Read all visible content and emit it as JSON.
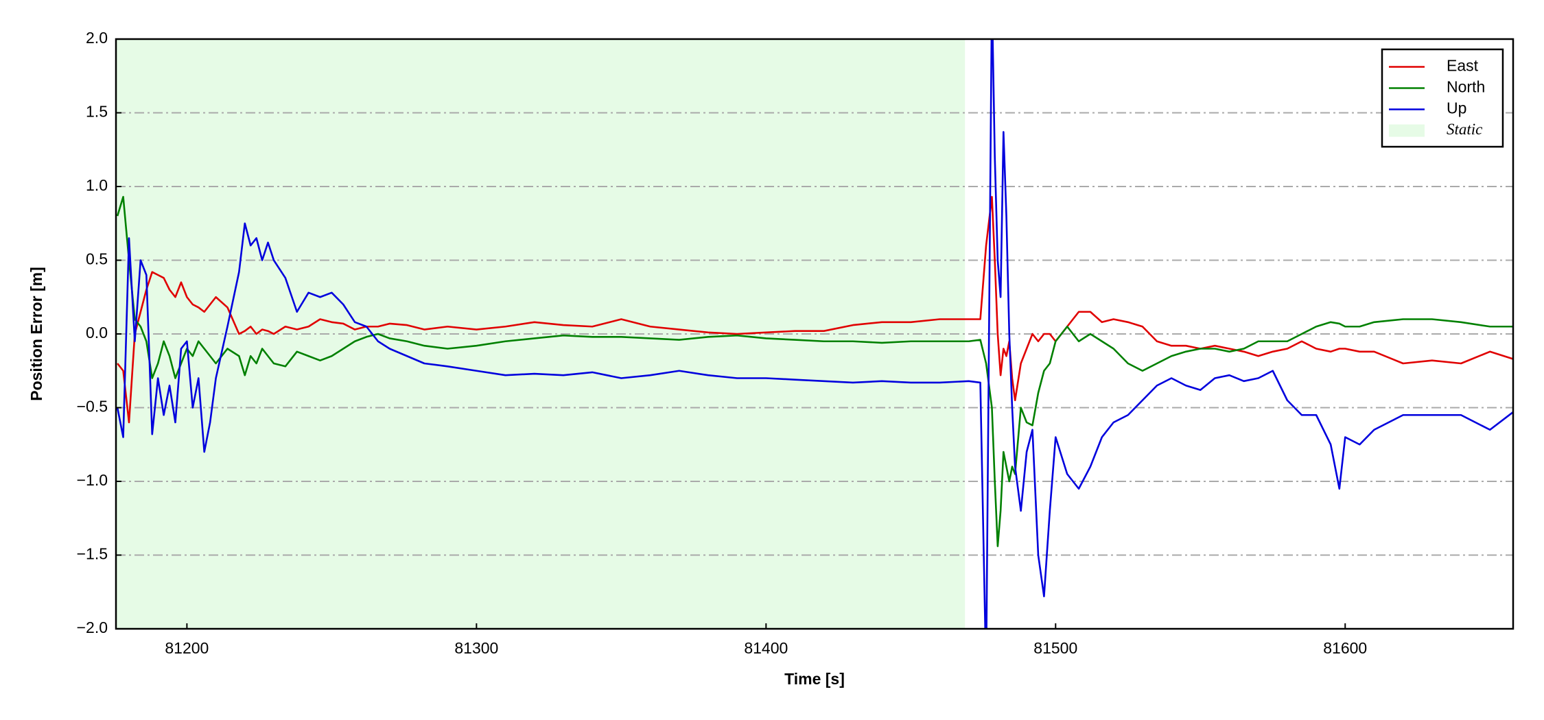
{
  "chart_data": {
    "type": "line",
    "xlabel": "Time [s]",
    "ylabel": "Position Error [m]",
    "x": [
      81176,
      81178,
      81180,
      81182,
      81184,
      81186,
      81188,
      81190,
      81192,
      81194,
      81196,
      81198,
      81200,
      81202,
      81204,
      81206,
      81208,
      81210,
      81214,
      81218,
      81220,
      81222,
      81224,
      81226,
      81228,
      81230,
      81234,
      81238,
      81242,
      81246,
      81250,
      81254,
      81258,
      81262,
      81266,
      81270,
      81276,
      81282,
      81290,
      81300,
      81310,
      81320,
      81330,
      81340,
      81350,
      81360,
      81370,
      81380,
      81390,
      81400,
      81410,
      81420,
      81430,
      81440,
      81450,
      81460,
      81470,
      81474,
      81476,
      81478,
      81479,
      81480,
      81481,
      81482,
      81483,
      81484,
      81485,
      81486,
      81488,
      81490,
      81492,
      81494,
      81496,
      81498,
      81500,
      81504,
      81508,
      81512,
      81516,
      81520,
      81525,
      81530,
      81535,
      81540,
      81545,
      81550,
      81555,
      81560,
      81565,
      81570,
      81575,
      81580,
      81585,
      81590,
      81595,
      81598,
      81600,
      81605,
      81610,
      81620,
      81630,
      81640,
      81650,
      81658
    ],
    "series": [
      {
        "name": "East",
        "color": "#e00000",
        "values": [
          -0.2,
          -0.25,
          -0.6,
          0.0,
          0.15,
          0.3,
          0.42,
          0.4,
          0.38,
          0.3,
          0.25,
          0.35,
          0.25,
          0.2,
          0.18,
          0.15,
          0.2,
          0.25,
          0.18,
          0.0,
          0.02,
          0.05,
          0.0,
          0.03,
          0.02,
          0.0,
          0.05,
          0.03,
          0.05,
          0.1,
          0.08,
          0.07,
          0.03,
          0.05,
          0.05,
          0.07,
          0.06,
          0.03,
          0.05,
          0.03,
          0.05,
          0.08,
          0.06,
          0.05,
          0.1,
          0.05,
          0.03,
          0.01,
          0.0,
          0.01,
          0.02,
          0.02,
          0.06,
          0.08,
          0.08,
          0.1,
          0.1,
          0.1,
          0.6,
          0.93,
          0.5,
          0.0,
          -0.28,
          -0.1,
          -0.15,
          -0.05,
          -0.3,
          -0.45,
          -0.2,
          -0.1,
          0.0,
          -0.05,
          0.0,
          0.0,
          -0.05,
          0.05,
          0.15,
          0.15,
          0.08,
          0.1,
          0.08,
          0.05,
          -0.05,
          -0.08,
          -0.08,
          -0.1,
          -0.08,
          -0.1,
          -0.12,
          -0.15,
          -0.12,
          -0.1,
          -0.05,
          -0.1,
          -0.12,
          -0.1,
          -0.1,
          -0.12,
          -0.12,
          -0.2,
          -0.18,
          -0.2,
          -0.12,
          -0.17
        ]
      },
      {
        "name": "North",
        "color": "#008000",
        "values": [
          0.8,
          0.93,
          0.5,
          0.1,
          0.05,
          -0.05,
          -0.3,
          -0.2,
          -0.05,
          -0.15,
          -0.3,
          -0.2,
          -0.1,
          -0.15,
          -0.05,
          -0.1,
          -0.15,
          -0.2,
          -0.1,
          -0.15,
          -0.28,
          -0.15,
          -0.2,
          -0.1,
          -0.15,
          -0.2,
          -0.22,
          -0.12,
          -0.15,
          -0.18,
          -0.15,
          -0.1,
          -0.05,
          -0.02,
          0.0,
          -0.03,
          -0.05,
          -0.08,
          -0.1,
          -0.08,
          -0.05,
          -0.03,
          -0.01,
          -0.02,
          -0.02,
          -0.03,
          -0.04,
          -0.02,
          -0.01,
          -0.03,
          -0.04,
          -0.05,
          -0.05,
          -0.06,
          -0.05,
          -0.05,
          -0.05,
          -0.04,
          -0.2,
          -0.5,
          -1.0,
          -1.44,
          -1.2,
          -0.8,
          -0.9,
          -1.0,
          -0.9,
          -0.95,
          -0.5,
          -0.6,
          -0.62,
          -0.4,
          -0.25,
          -0.2,
          -0.05,
          0.05,
          -0.05,
          0.0,
          -0.05,
          -0.1,
          -0.2,
          -0.25,
          -0.2,
          -0.15,
          -0.12,
          -0.1,
          -0.1,
          -0.12,
          -0.1,
          -0.05,
          -0.05,
          -0.05,
          0.0,
          0.05,
          0.08,
          0.07,
          0.05,
          0.05,
          0.08,
          0.1,
          0.1,
          0.08,
          0.05,
          0.05
        ]
      },
      {
        "name": "Up",
        "color": "#0000dd",
        "values": [
          -0.5,
          -0.7,
          0.65,
          -0.05,
          0.5,
          0.4,
          -0.68,
          -0.3,
          -0.55,
          -0.35,
          -0.6,
          -0.1,
          -0.05,
          -0.5,
          -0.3,
          -0.8,
          -0.6,
          -0.3,
          0.05,
          0.42,
          0.75,
          0.6,
          0.65,
          0.5,
          0.62,
          0.5,
          0.38,
          0.15,
          0.28,
          0.25,
          0.28,
          0.2,
          0.08,
          0.05,
          -0.05,
          -0.1,
          -0.15,
          -0.2,
          -0.22,
          -0.25,
          -0.28,
          -0.27,
          -0.28,
          -0.26,
          -0.3,
          -0.28,
          -0.25,
          -0.28,
          -0.3,
          -0.3,
          -0.31,
          -0.32,
          -0.33,
          -0.32,
          -0.33,
          -0.33,
          -0.32,
          -0.33,
          -2.3,
          2.3,
          1.2,
          0.5,
          0.25,
          1.37,
          0.8,
          0.0,
          -0.5,
          -0.9,
          -1.2,
          -0.8,
          -0.65,
          -1.5,
          -1.78,
          -1.2,
          -0.7,
          -0.95,
          -1.05,
          -0.9,
          -0.7,
          -0.6,
          -0.55,
          -0.45,
          -0.35,
          -0.3,
          -0.35,
          -0.38,
          -0.3,
          -0.28,
          -0.32,
          -0.3,
          -0.25,
          -0.45,
          -0.55,
          -0.55,
          -0.75,
          -1.05,
          -0.7,
          -0.75,
          -0.65,
          -0.55,
          -0.55,
          -0.55,
          -0.65,
          -0.53
        ]
      }
    ],
    "shaded_regions": [
      {
        "name": "Static",
        "x": [
          81175.5,
          81468.7
        ],
        "color": "#e6fbe6"
      }
    ],
    "xlim": [
      81175.5,
      81658
    ],
    "ylim": [
      -2.0,
      2.0
    ],
    "xticks": [
      81200,
      81300,
      81400,
      81500,
      81600
    ],
    "yticks": [
      {
        "value": -2,
        "label": "−2.0"
      },
      {
        "value": -1.5,
        "label": "−1.5"
      },
      {
        "value": -1,
        "label": "−1.0"
      },
      {
        "value": -0.5,
        "label": "−0.5"
      },
      {
        "value": 0,
        "label": "0.0"
      },
      {
        "value": 0.5,
        "label": "0.5"
      },
      {
        "value": 1,
        "label": "1.0"
      },
      {
        "value": 1.5,
        "label": "1.5"
      },
      {
        "value": 2,
        "label": "2.0"
      }
    ],
    "grid": true,
    "legend": "upper right"
  }
}
